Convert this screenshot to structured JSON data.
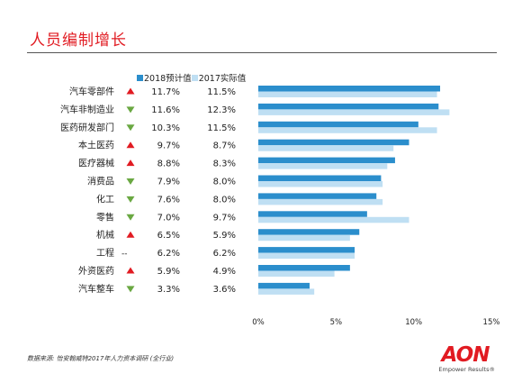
{
  "page": {
    "title": "人员编制增长",
    "source": "数据来源: 怡安翰威特2017年人力资本调研 (全行业)"
  },
  "logo": {
    "wordmark": "AON",
    "tagline": "Empower Results®"
  },
  "colors": {
    "series_2018": "#2b8ecc",
    "series_2017": "#bfdff3",
    "up": "#e11b22",
    "down": "#6aa842",
    "title": "#e11b22"
  },
  "chart_data": {
    "type": "bar",
    "orientation": "horizontal",
    "categories": [
      "汽车零部件",
      "汽车非制造业",
      "医药研发部门",
      "本土医药",
      "医疗器械",
      "消费品",
      "化工",
      "零售",
      "机械",
      "工程",
      "外资医药",
      "汽车整车"
    ],
    "series": [
      {
        "name": "2018预计值",
        "values": [
          11.7,
          11.6,
          10.3,
          9.7,
          8.8,
          7.9,
          7.6,
          7.0,
          6.5,
          6.2,
          5.9,
          3.3
        ],
        "labels": [
          "11.7%",
          "11.6%",
          "10.3%",
          "9.7%",
          "8.8%",
          "7.9%",
          "7.6%",
          "7.0%",
          "6.5%",
          "6.2%",
          "5.9%",
          "3.3%"
        ]
      },
      {
        "name": "2017实际值",
        "values": [
          11.5,
          12.3,
          11.5,
          8.7,
          8.3,
          8.0,
          8.0,
          9.7,
          5.9,
          6.2,
          4.9,
          3.6
        ],
        "labels": [
          "11.5%",
          "12.3%",
          "11.5%",
          "8.7%",
          "8.3%",
          "8.0%",
          "8.0%",
          "9.7%",
          "5.9%",
          "6.2%",
          "4.9%",
          "3.6%"
        ]
      }
    ],
    "trend": [
      "up",
      "down",
      "down",
      "up",
      "up",
      "down",
      "down",
      "down",
      "up",
      "flat",
      "up",
      "down"
    ],
    "flat_symbol": "--",
    "xlim": [
      0,
      15
    ],
    "xticks": [
      0,
      5,
      10,
      15
    ],
    "xtick_labels": [
      "0%",
      "5%",
      "10%",
      "15%"
    ],
    "legend_position": "top",
    "grid": false
  }
}
